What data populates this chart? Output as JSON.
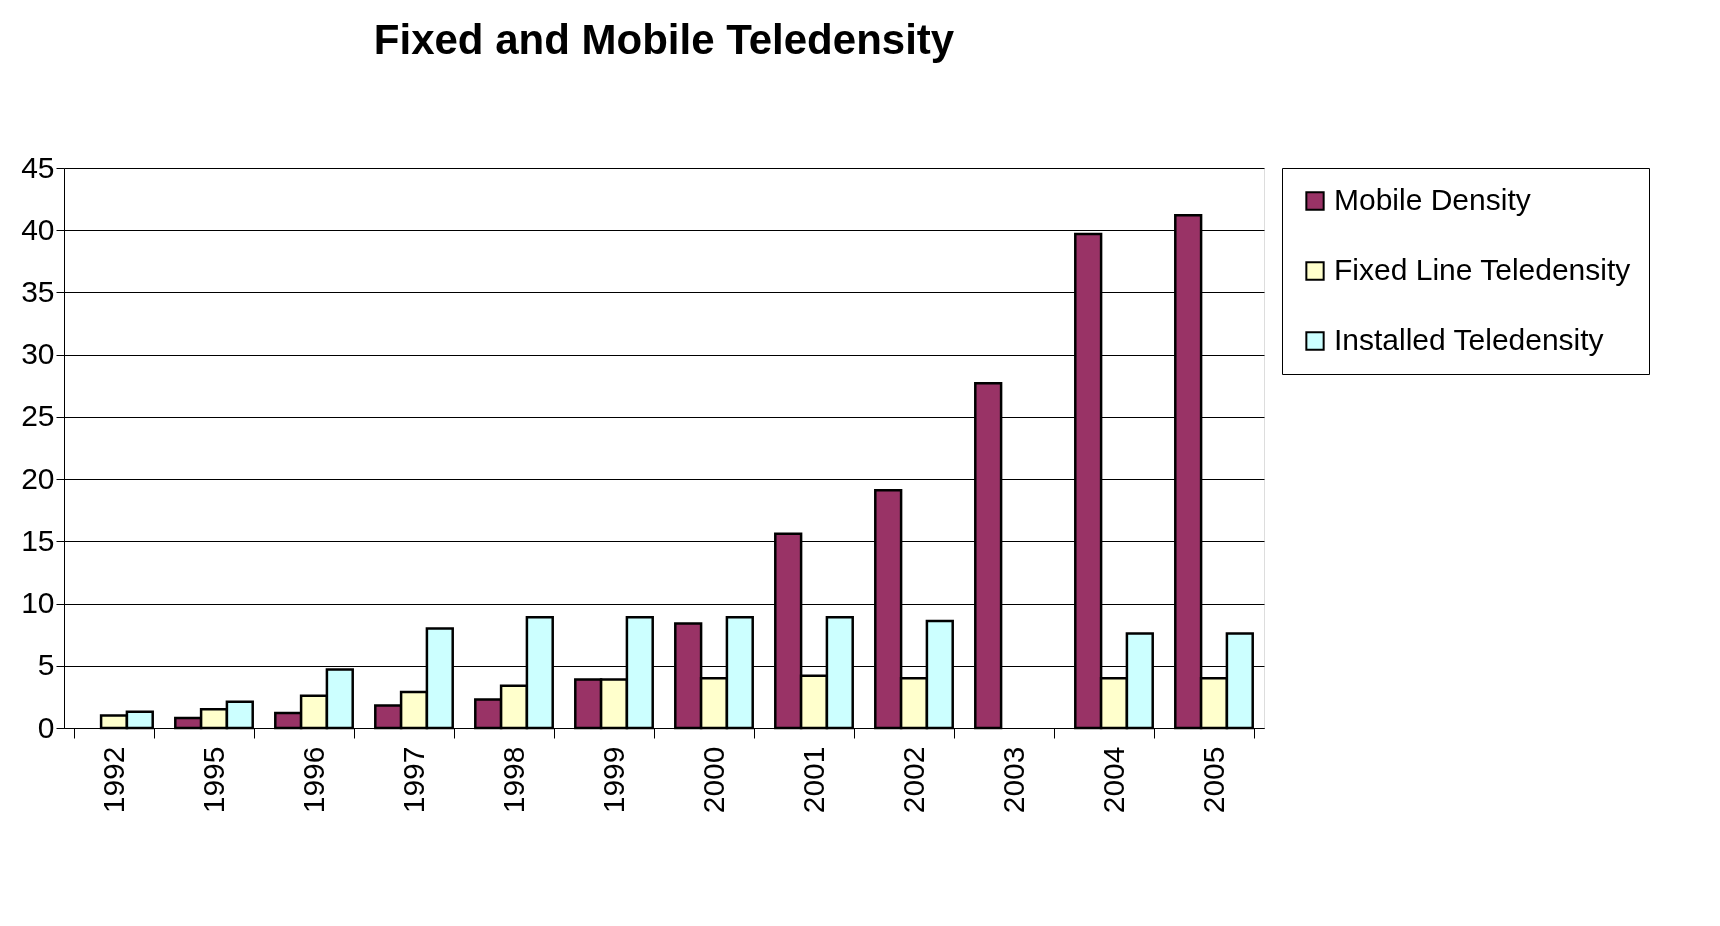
{
  "chart_data": {
    "type": "bar",
    "title": "Fixed and Mobile Teledensity",
    "categories": [
      "1992",
      "1995",
      "1996",
      "1997",
      "1998",
      "1999",
      "2000",
      "2001",
      "2002",
      "2003",
      "2004",
      "2005"
    ],
    "series": [
      {
        "name": "Mobile Density",
        "color": "#993366",
        "values": [
          null,
          0.8,
          1.2,
          1.8,
          2.3,
          3.9,
          8.4,
          15.6,
          19.1,
          27.7,
          39.7,
          41.2
        ]
      },
      {
        "name": "Fixed Line Teledensity",
        "color": "#ffffcc",
        "values": [
          1.0,
          1.5,
          2.6,
          2.9,
          3.4,
          3.9,
          4.0,
          4.2,
          4.0,
          null,
          4.0,
          4.0
        ]
      },
      {
        "name": "Installed Teledensity",
        "color": "#ccffff",
        "values": [
          1.3,
          2.1,
          4.7,
          8.0,
          8.9,
          8.9,
          8.9,
          8.9,
          8.6,
          null,
          7.6,
          7.6
        ]
      }
    ],
    "ylim": [
      0,
      45
    ],
    "yticks": [
      0,
      5,
      10,
      15,
      20,
      25,
      30,
      35,
      40,
      45
    ],
    "grid": "y",
    "legend": "right"
  }
}
